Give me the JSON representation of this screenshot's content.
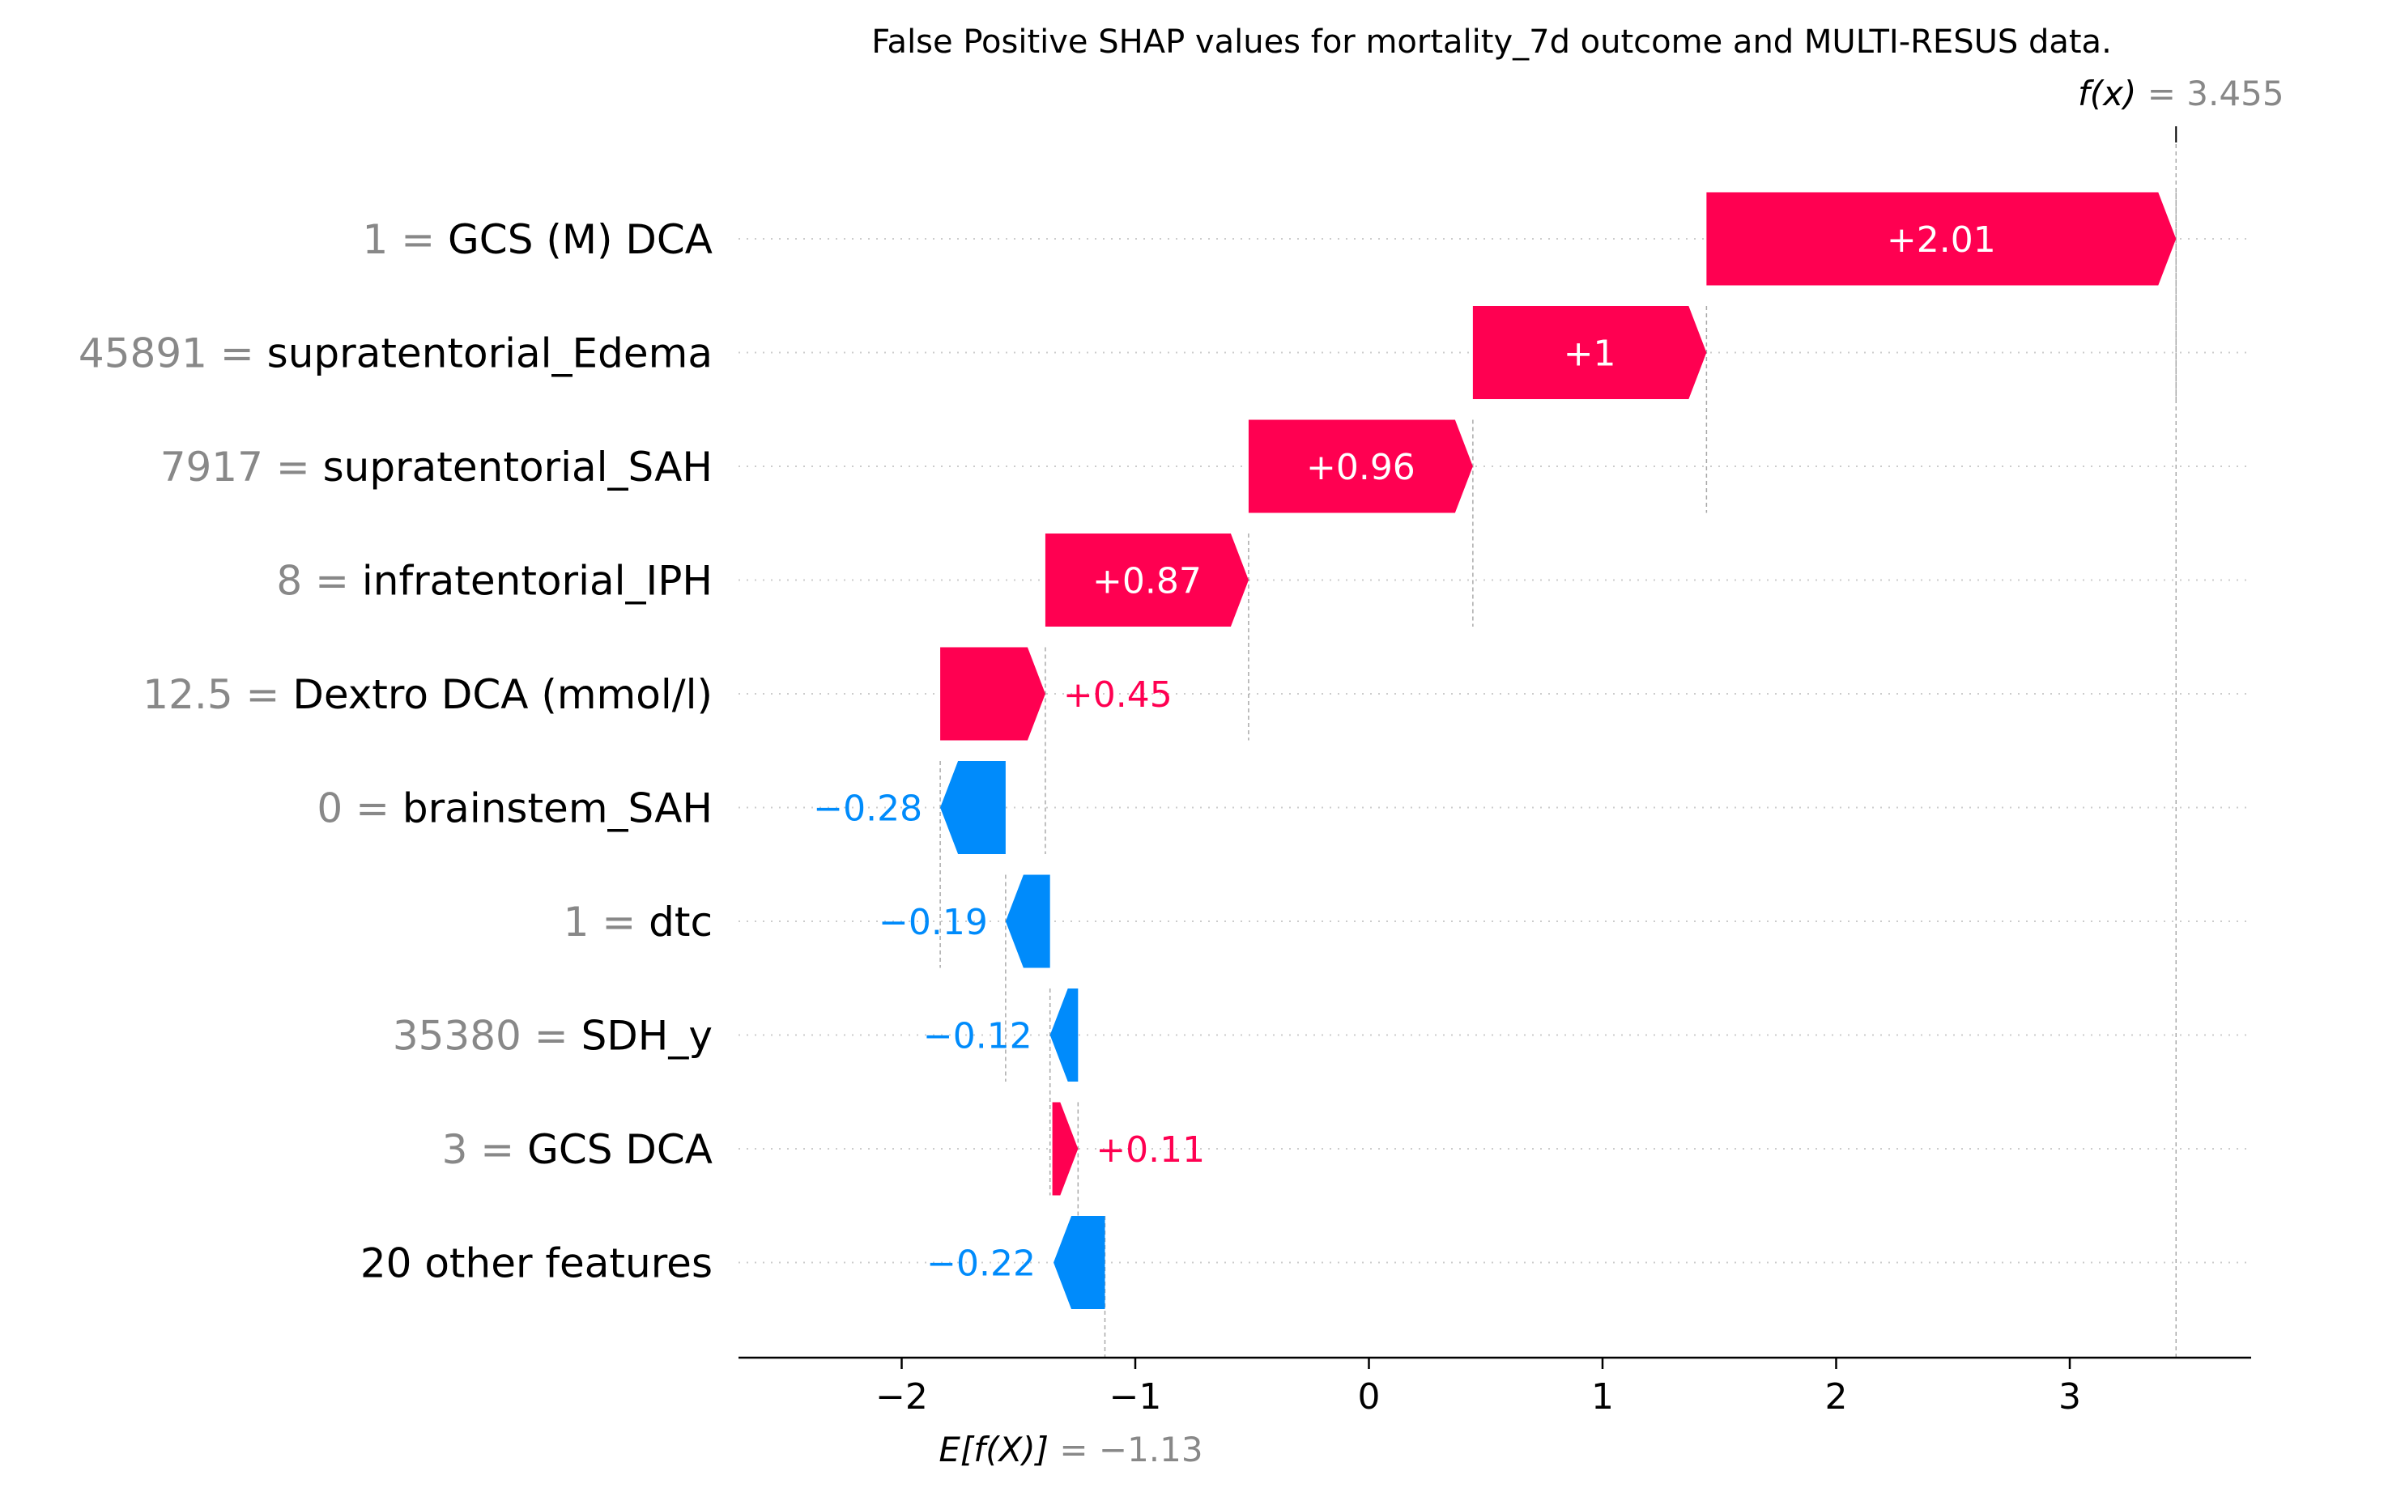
{
  "chart_data": {
    "type": "waterfall",
    "title": "False Positive SHAP values for mortality_7d outcome and MULTI-RESUS data.",
    "base_value": -1.13,
    "base_value_label": "−1.13",
    "base_label": "E[f(X)]",
    "output_value": 3.455,
    "output_value_label": "3.455",
    "output_label": "f(x)",
    "xlim": [
      -2.7,
      3.8
    ],
    "xticks": [
      {
        "value": -2,
        "label": "−2"
      },
      {
        "value": -1,
        "label": "−1"
      },
      {
        "value": 0,
        "label": "0"
      },
      {
        "value": 1,
        "label": "1"
      },
      {
        "value": 2,
        "label": "2"
      },
      {
        "value": 3,
        "label": "3"
      }
    ],
    "grid": "dotted horizontal per feature row",
    "features": [
      {
        "value_text": "1",
        "name": "GCS (M) DCA",
        "shap": 2.01,
        "label": "+2.01",
        "start": 1.445,
        "end": 3.455
      },
      {
        "value_text": "45891",
        "name": "supratentorial_Edema",
        "shap": 1.0,
        "label": "+1",
        "start": 0.445,
        "end": 1.445
      },
      {
        "value_text": "7917",
        "name": "supratentorial_SAH",
        "shap": 0.96,
        "label": "+0.96",
        "start": -0.515,
        "end": 0.445
      },
      {
        "value_text": "8",
        "name": "infratentorial_IPH",
        "shap": 0.87,
        "label": "+0.87",
        "start": -1.385,
        "end": -0.515
      },
      {
        "value_text": "12.5",
        "name": "Dextro DCA (mmol/l)",
        "shap": 0.45,
        "label": "+0.45",
        "start": -1.835,
        "end": -1.385
      },
      {
        "value_text": "0",
        "name": "brainstem_SAH",
        "shap": -0.28,
        "label": "−0.28",
        "start": -1.555,
        "end": -1.835
      },
      {
        "value_text": "1",
        "name": "dtc",
        "shap": -0.19,
        "label": "−0.19",
        "start": -1.365,
        "end": -1.555
      },
      {
        "value_text": "35380",
        "name": "SDH_y",
        "shap": -0.12,
        "label": "−0.12",
        "start": -1.245,
        "end": -1.365
      },
      {
        "value_text": "3",
        "name": "GCS DCA",
        "shap": 0.11,
        "label": "+0.11",
        "start": -1.355,
        "end": -1.245
      },
      {
        "value_text": "",
        "name": "20 other features",
        "shap": -0.22,
        "label": "−0.22",
        "start": -1.13,
        "end": -1.35
      }
    ],
    "colors": {
      "positive": "#ff0051",
      "negative": "#008bfb",
      "feature_value": "#888888",
      "axis": "#000000",
      "reference_line": "#aaaaaa"
    }
  }
}
